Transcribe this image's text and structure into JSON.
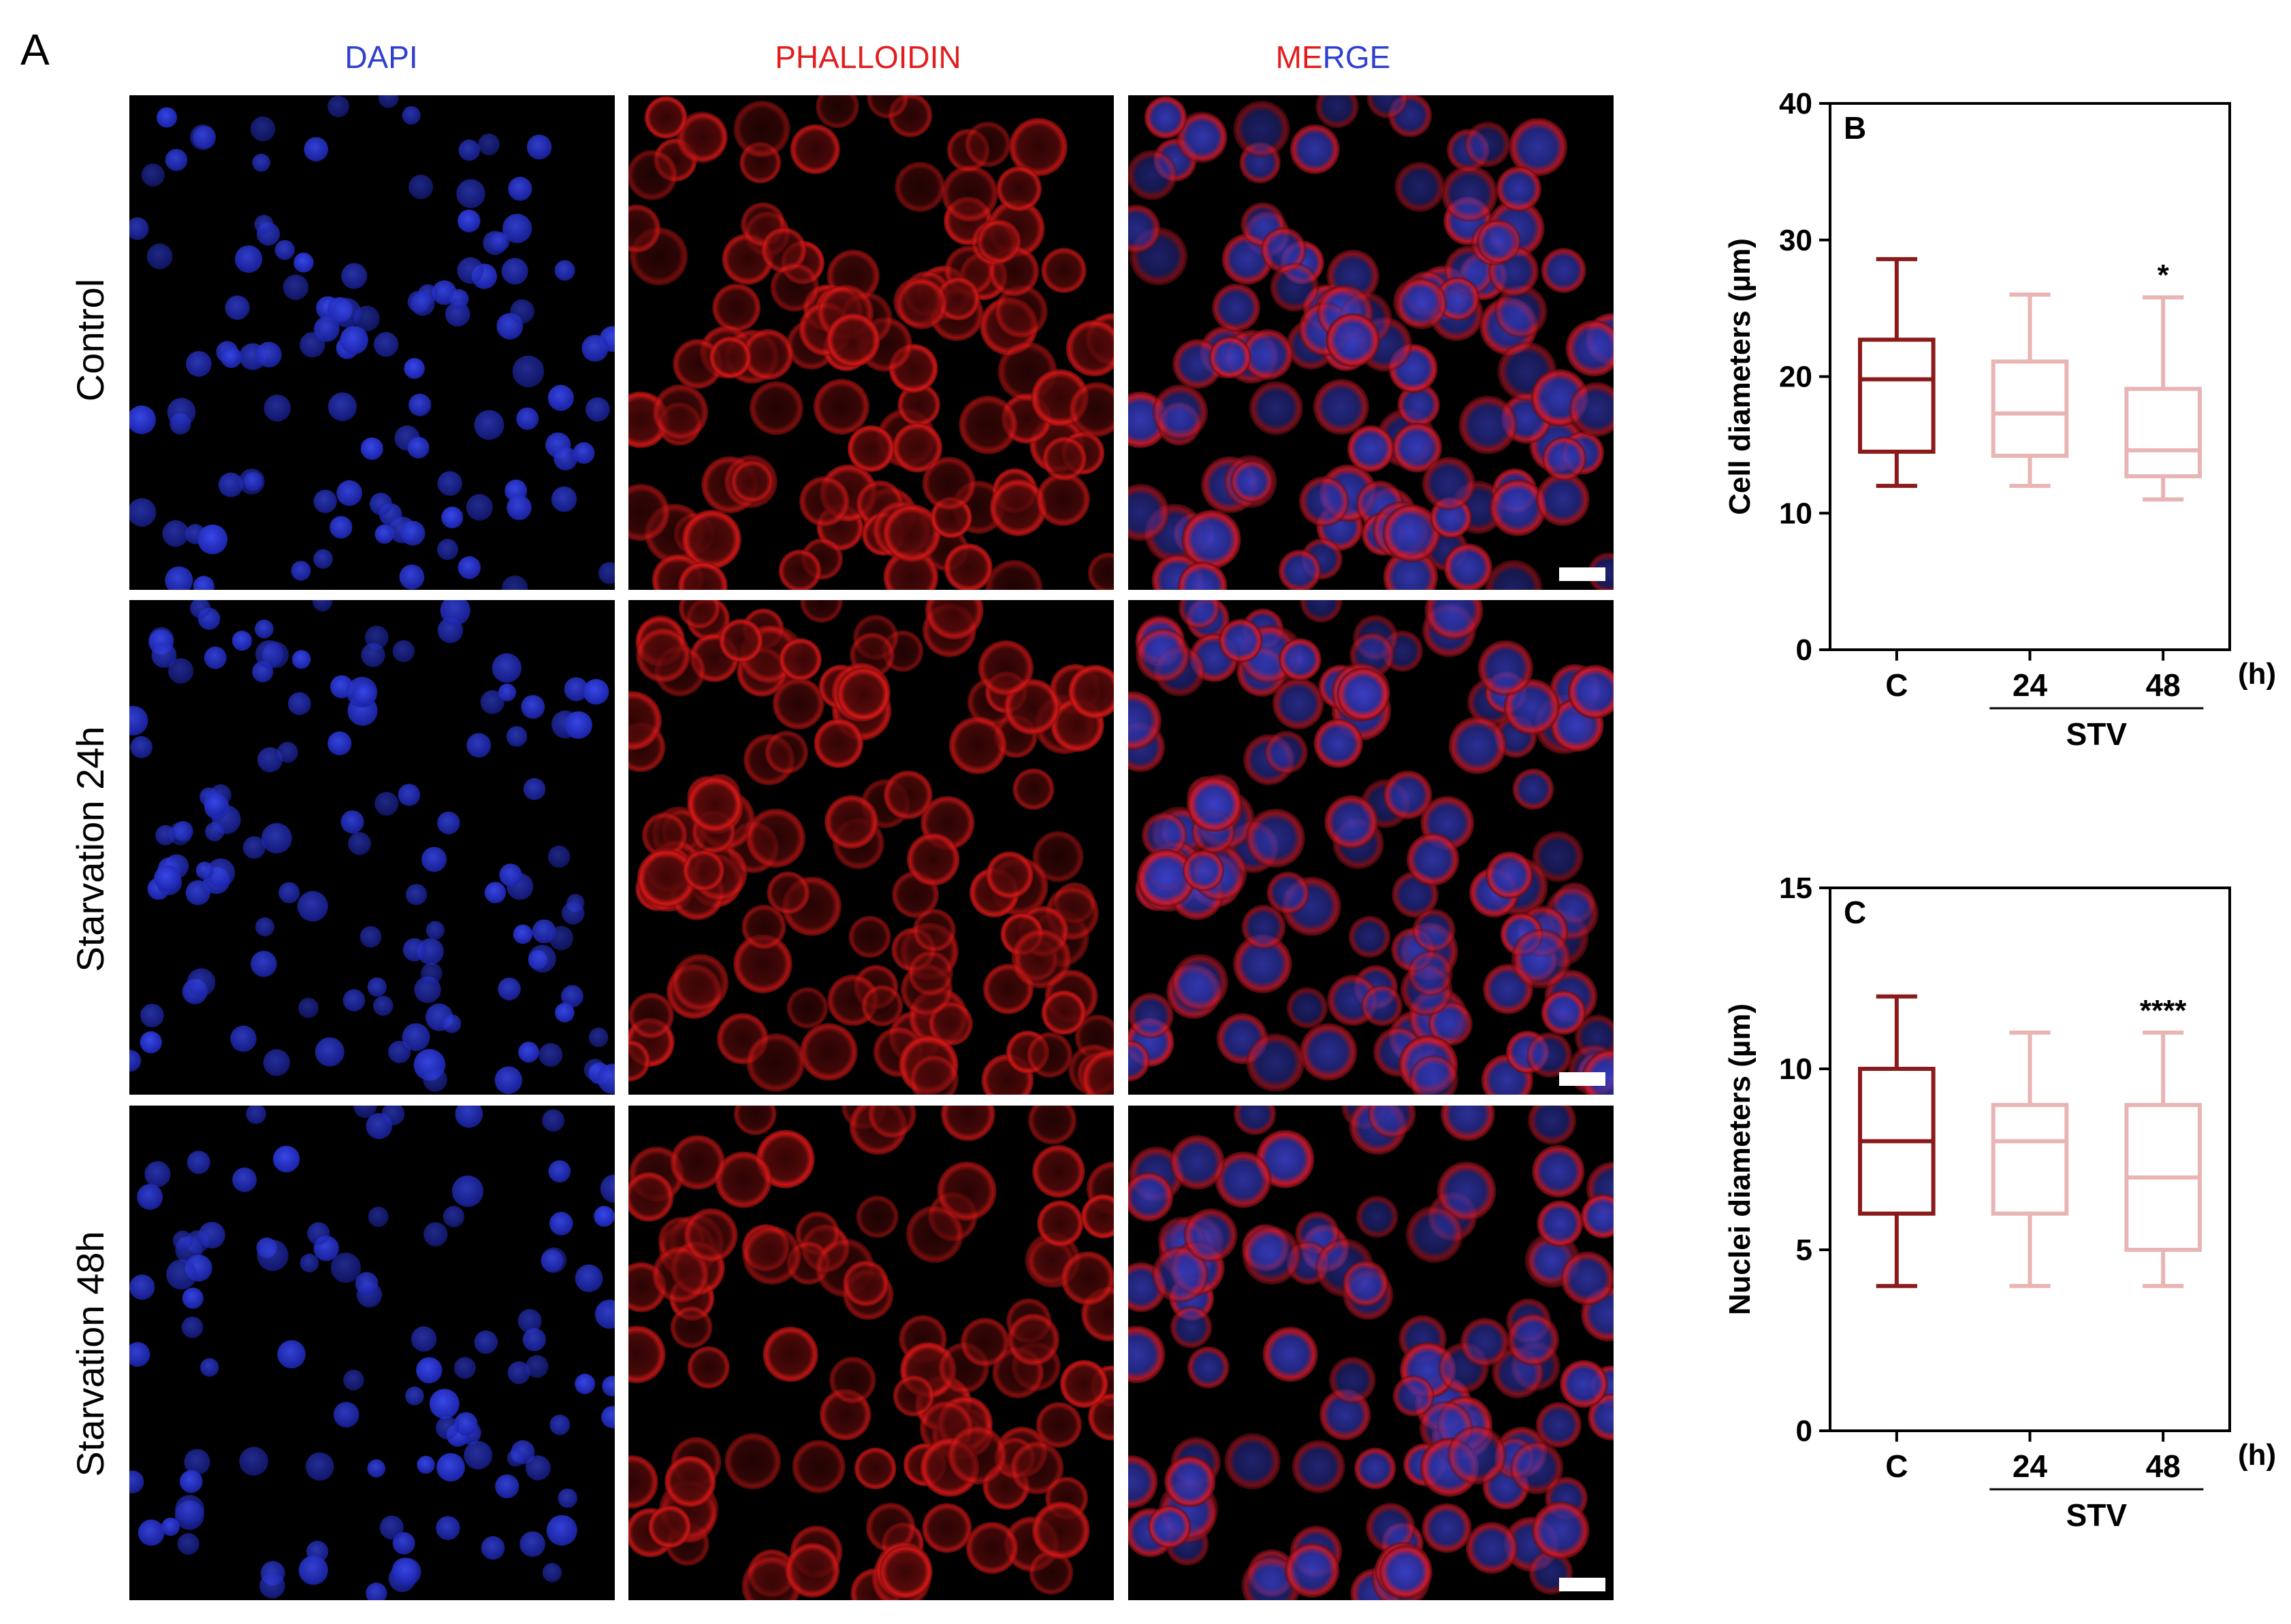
{
  "panel_a": {
    "letter": "A",
    "columns": [
      "DAPI",
      "PHALLOIDIN",
      "MERGE"
    ],
    "rows": [
      "Control",
      "Starvation 24h",
      "Starvation 48h"
    ],
    "colors": {
      "dapi": "#2f3fd0",
      "phalloidin": "#e31d1d"
    }
  },
  "chart_data": [
    {
      "type": "box",
      "panel_letter": "B",
      "title": "",
      "xlabel": "",
      "ylabel": "Cell diameters (µm)",
      "ylim": [
        0,
        40
      ],
      "yticks": [
        0,
        10,
        20,
        30,
        40
      ],
      "categories": [
        "C",
        "24",
        "48"
      ],
      "x_unit": "(h)",
      "group_label": "STV",
      "group_spans": [
        "24",
        "48"
      ],
      "boxes": [
        {
          "category": "C",
          "min": 12,
          "q1": 14.5,
          "median": 19.8,
          "q3": 22.7,
          "max": 28.6,
          "color": "#8b1a1a",
          "annotation": ""
        },
        {
          "category": "24",
          "min": 12,
          "q1": 14.2,
          "median": 17.3,
          "q3": 21.1,
          "max": 26.0,
          "color": "#e8b4b4",
          "annotation": ""
        },
        {
          "category": "48",
          "min": 11,
          "q1": 12.7,
          "median": 14.6,
          "q3": 19.1,
          "max": 25.8,
          "color": "#e8b4b4",
          "annotation": "*"
        }
      ]
    },
    {
      "type": "box",
      "panel_letter": "C",
      "title": "",
      "xlabel": "",
      "ylabel": "Nuclei diameters (µm)",
      "ylim": [
        0,
        15
      ],
      "yticks": [
        0,
        5,
        10,
        15
      ],
      "categories": [
        "C",
        "24",
        "48"
      ],
      "x_unit": "(h)",
      "group_label": "STV",
      "group_spans": [
        "24",
        "48"
      ],
      "boxes": [
        {
          "category": "C",
          "min": 4,
          "q1": 6,
          "median": 8,
          "q3": 10,
          "max": 12,
          "color": "#8b1a1a",
          "annotation": ""
        },
        {
          "category": "24",
          "min": 4,
          "q1": 6,
          "median": 8,
          "q3": 9,
          "max": 11,
          "color": "#e8b4b4",
          "annotation": ""
        },
        {
          "category": "48",
          "min": 4,
          "q1": 5,
          "median": 7,
          "q3": 9,
          "max": 11,
          "color": "#e8b4b4",
          "annotation": "****"
        }
      ]
    }
  ]
}
